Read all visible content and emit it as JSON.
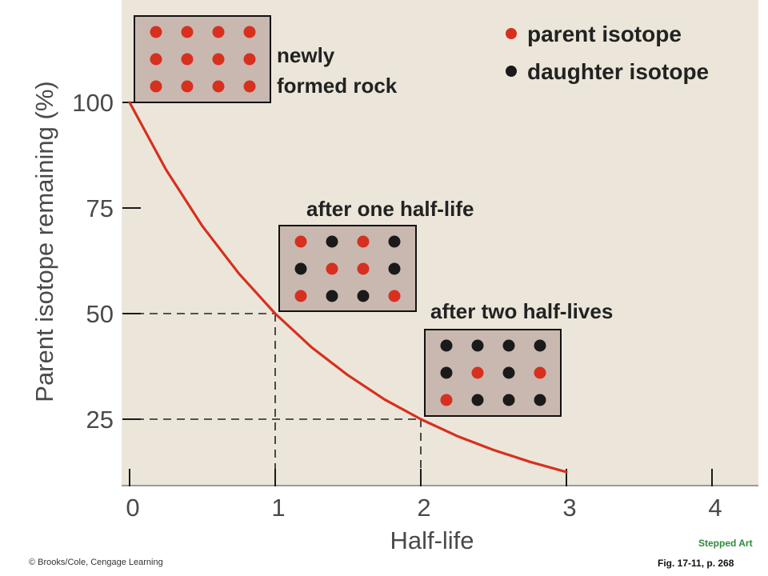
{
  "chart_data": {
    "type": "line",
    "xlabel": "Half-life",
    "ylabel": "Parent isotope remaining (%)",
    "x_ticks": [
      0,
      1,
      2,
      3,
      4
    ],
    "y_ticks": [
      25,
      50,
      75,
      100
    ],
    "xlim": [
      0,
      4.3
    ],
    "ylim": [
      8.5,
      124
    ],
    "grid": false,
    "series": [
      {
        "color": "#d7301f",
        "x": [
          0,
          0.25,
          0.5,
          0.75,
          1,
          1.25,
          1.5,
          1.75,
          2,
          2.25,
          2.5,
          2.75,
          3
        ],
        "values": [
          100,
          84.1,
          70.7,
          59.5,
          50,
          42,
          35.4,
          29.7,
          25,
          21,
          17.7,
          14.9,
          12.5
        ]
      }
    ],
    "reference_points": [
      {
        "x": 1,
        "y": 50
      },
      {
        "x": 2,
        "y": 25
      }
    ],
    "legend": {
      "placement": "top-right",
      "items": [
        {
          "label": "parent isotope",
          "color": "#d7301f"
        },
        {
          "label": "daughter isotope",
          "color": "#1a1a1a"
        }
      ]
    },
    "samples": [
      {
        "label_lines": [
          "newly",
          "formed rock"
        ],
        "rows": [
          [
            "P",
            "P",
            "P",
            "P"
          ],
          [
            "P",
            "P",
            "P",
            "P"
          ],
          [
            "P",
            "P",
            "P",
            "P"
          ]
        ]
      },
      {
        "label_lines": [
          "after one half-life"
        ],
        "rows": [
          [
            "P",
            "D",
            "P",
            "D"
          ],
          [
            "D",
            "P",
            "P",
            "D"
          ],
          [
            "P",
            "D",
            "D",
            "P"
          ]
        ]
      },
      {
        "label_lines": [
          "after two half-lives"
        ],
        "rows": [
          [
            "D",
            "D",
            "D",
            "D"
          ],
          [
            "D",
            "P",
            "D",
            "P"
          ],
          [
            "P",
            "D",
            "D",
            "D"
          ]
        ]
      }
    ]
  },
  "footer": {
    "credit": "© Brooks/Cole, Cengage Learning",
    "stepped": "Stepped Art",
    "figure_ref": "Fig. 17-11, p. 268"
  }
}
